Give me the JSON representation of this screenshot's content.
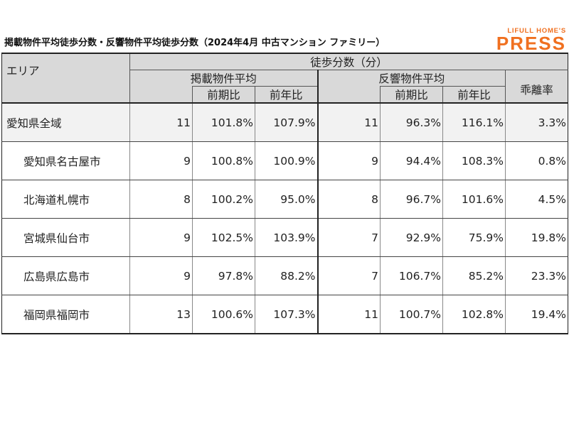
{
  "title": "掲載物件平均徒歩分数・反響物件平均徒歩分数（2024年4月 中古マンション ファミリー）",
  "logo": {
    "top": "LIFULL HOME'S",
    "main": "PRESS"
  },
  "header": {
    "area": "エリア",
    "walk_minutes": "徒歩分数（分）",
    "listed_avg": "掲載物件平均",
    "response_avg": "反響物件平均",
    "divergence": "乖離率",
    "qoq": "前期比",
    "yoy": "前年比"
  },
  "rows": [
    {
      "area": "愛知県全域",
      "listed": "11",
      "listed_qoq": "101.8%",
      "listed_yoy": "107.9%",
      "resp": "11",
      "resp_qoq": "96.3%",
      "resp_yoy": "116.1%",
      "div": "3.3%"
    },
    {
      "area": "愛知県名古屋市",
      "listed": "9",
      "listed_qoq": "100.8%",
      "listed_yoy": "100.9%",
      "resp": "9",
      "resp_qoq": "94.4%",
      "resp_yoy": "108.3%",
      "div": "0.8%"
    },
    {
      "area": "北海道札幌市",
      "listed": "8",
      "listed_qoq": "100.2%",
      "listed_yoy": "95.0%",
      "resp": "8",
      "resp_qoq": "96.7%",
      "resp_yoy": "101.6%",
      "div": "4.5%"
    },
    {
      "area": "宮城県仙台市",
      "listed": "9",
      "listed_qoq": "102.5%",
      "listed_yoy": "103.9%",
      "resp": "7",
      "resp_qoq": "92.9%",
      "resp_yoy": "75.9%",
      "div": "19.8%"
    },
    {
      "area": "広島県広島市",
      "listed": "9",
      "listed_qoq": "97.8%",
      "listed_yoy": "88.2%",
      "resp": "7",
      "resp_qoq": "106.7%",
      "resp_yoy": "85.2%",
      "div": "23.3%"
    },
    {
      "area": "福岡県福岡市",
      "listed": "13",
      "listed_qoq": "100.6%",
      "listed_yoy": "107.3%",
      "resp": "11",
      "resp_qoq": "100.7%",
      "resp_yoy": "102.8%",
      "div": "19.4%"
    }
  ]
}
